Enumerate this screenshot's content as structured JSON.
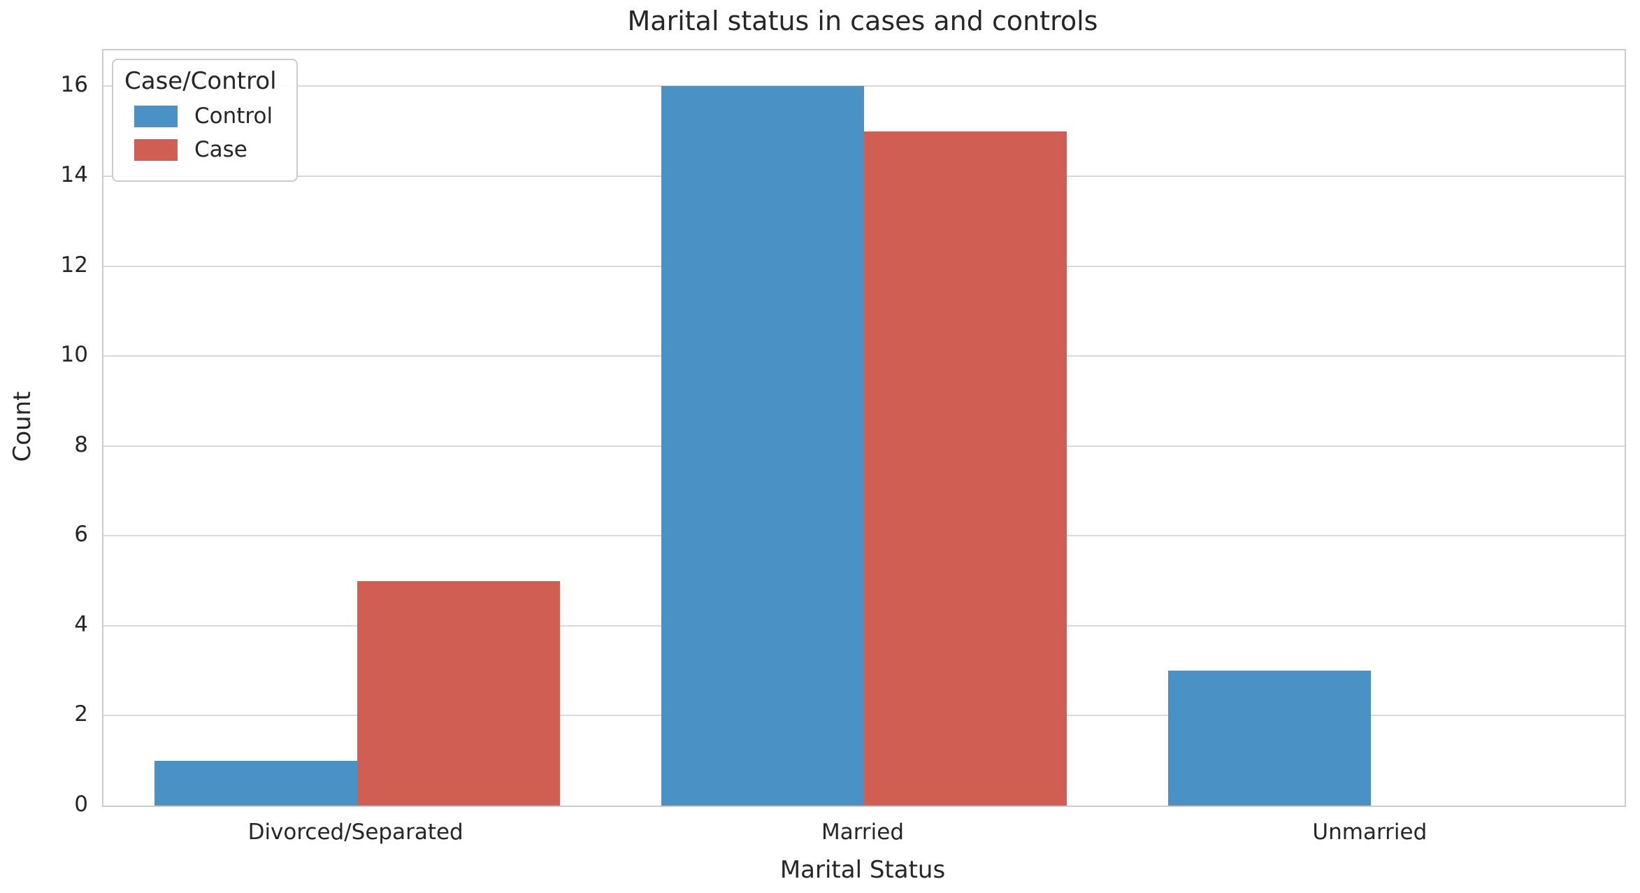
{
  "title": "Marital status in cases and controls",
  "legend": {
    "title": "Case/Control",
    "items": [
      {
        "label": "Control",
        "color": "#4a91c6"
      },
      {
        "label": "Case",
        "color": "#d15e52"
      }
    ]
  },
  "colors": {
    "control_blue": "#4a91c6",
    "case_red": "#d15e52",
    "gridline": "#d9d9dd",
    "spine": "#cccccc",
    "text": "#262626"
  },
  "chart_data": {
    "type": "bar",
    "title": "Marital status in cases and controls",
    "xlabel": "Marital Status",
    "ylabel": "Count",
    "categories": [
      "Divorced/Separated",
      "Married",
      "Unmarried"
    ],
    "series": [
      {
        "name": "Control",
        "color": "#4a91c6",
        "values": [
          1,
          16,
          3
        ]
      },
      {
        "name": "Case",
        "color": "#d15e52",
        "values": [
          5,
          15,
          0
        ]
      }
    ],
    "ylim": [
      0,
      16.8
    ],
    "yticks": [
      0,
      2,
      4,
      6,
      8,
      10,
      12,
      14,
      16
    ],
    "grid": "horizontal",
    "legend_position": "upper left",
    "legend_title": "Case/Control",
    "bar_group_width_fraction": 0.8
  }
}
